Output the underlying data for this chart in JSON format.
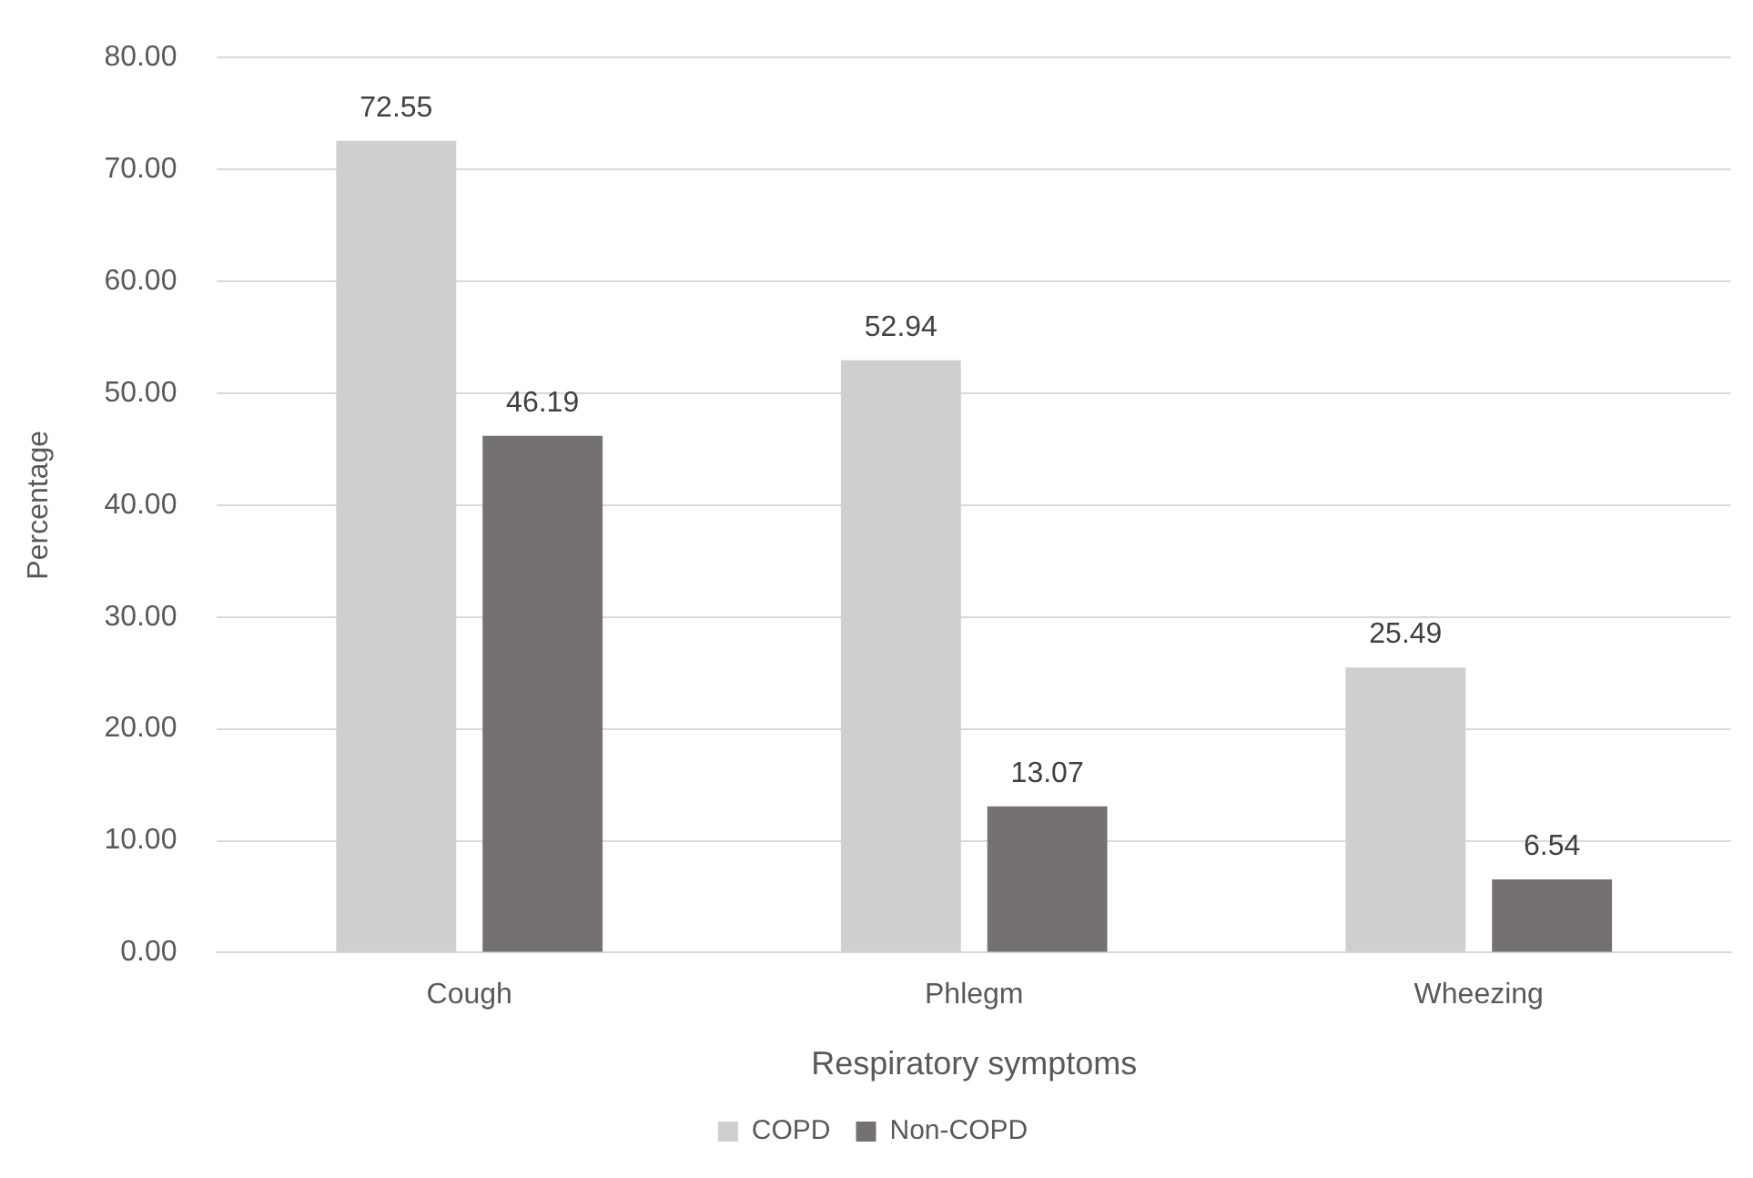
{
  "chart_data": {
    "type": "bar",
    "xlabel": "Respiratory symptoms",
    "ylabel": "Percentage",
    "categories": [
      "Cough",
      "Phlegm",
      "Wheezing"
    ],
    "series": [
      {
        "name": "COPD",
        "color": "#d0cece",
        "values": [
          72.55,
          52.94,
          25.49
        ]
      },
      {
        "name": "Non-COPD",
        "color": "#767171",
        "values": [
          46.19,
          13.07,
          6.54
        ]
      }
    ],
    "ylim": [
      0,
      80
    ],
    "yticks": [
      {
        "value": 0,
        "label": "0.00"
      },
      {
        "value": 10,
        "label": "10.00"
      },
      {
        "value": 20,
        "label": "20.00"
      },
      {
        "value": 30,
        "label": "30.00"
      },
      {
        "value": 40,
        "label": "40.00"
      },
      {
        "value": 50,
        "label": "50.00"
      },
      {
        "value": 60,
        "label": "60.00"
      },
      {
        "value": 70,
        "label": "70.00"
      },
      {
        "value": 80,
        "label": "80.00"
      }
    ],
    "grid": "y",
    "legend": "bottom",
    "data_labels": true
  }
}
